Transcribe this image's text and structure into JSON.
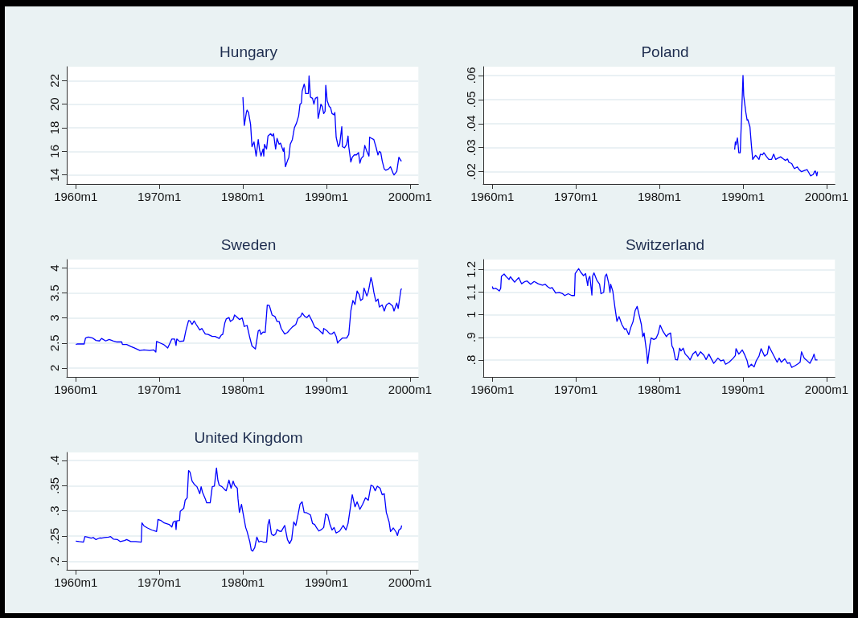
{
  "chart_data": [
    {
      "type": "line",
      "title": "Hungary",
      "color": "#0000ff",
      "grid": "y",
      "xlim": [
        "1958-12",
        "2001-01"
      ],
      "ylim": [
        13.23,
        23.18
      ],
      "xticks": [
        {
          "value": "1960-01",
          "label": "1960m1"
        },
        {
          "value": "1970-01",
          "label": "1970m1"
        },
        {
          "value": "1980-01",
          "label": "1980m1"
        },
        {
          "value": "1990-01",
          "label": "1990m1"
        },
        {
          "value": "2000-01",
          "label": "2000m1"
        }
      ],
      "yticks": [
        14,
        16,
        18,
        20,
        22
      ],
      "x": [
        "1980-01",
        "1980-03",
        "1980-06",
        "1980-07",
        "1980-09",
        "1980-12",
        "1981-02",
        "1981-05",
        "1981-08",
        "1981-11",
        "1982-01",
        "1982-03",
        "1982-06",
        "1982-07",
        "1982-08",
        "1982-11",
        "1983-01",
        "1983-05",
        "1983-07",
        "1983-09",
        "1983-12",
        "1984-02",
        "1984-05",
        "1984-07",
        "1984-11",
        "1984-12",
        "1985-02",
        "1985-05",
        "1985-07",
        "1985-09",
        "1985-12",
        "1986-03",
        "1986-06",
        "1986-09",
        "1986-11",
        "1987-01",
        "1987-02",
        "1987-05",
        "1987-06",
        "1987-07",
        "1987-11",
        "1987-12",
        "1988-02",
        "1988-05",
        "1988-07",
        "1988-09",
        "1988-12",
        "1989-01",
        "1989-03",
        "1989-05",
        "1989-07",
        "1989-09",
        "1989-11",
        "1989-12",
        "1990-02",
        "1990-05",
        "1990-07",
        "1990-09",
        "1990-12",
        "1991-01",
        "1991-03",
        "1991-06",
        "1991-08",
        "1991-11",
        "1991-12",
        "1992-03",
        "1992-06",
        "1992-08",
        "1992-09",
        "1992-12",
        "1993-02",
        "1993-05",
        "1993-08",
        "1993-11",
        "1994-01",
        "1994-03",
        "1994-06",
        "1994-08",
        "1994-11",
        "1995-02",
        "1995-03",
        "1995-06",
        "1995-09",
        "1995-12",
        "1996-03",
        "1996-05",
        "1996-07",
        "1996-09",
        "1996-12",
        "1997-02",
        "1997-06",
        "1997-09",
        "1998-01",
        "1998-02",
        "1998-06",
        "1998-09",
        "1998-12",
        "1999-01"
      ],
      "values": [
        20.6,
        18.2,
        19.3,
        19.5,
        19.3,
        18.3,
        16.4,
        16.8,
        15.6,
        17.0,
        16.1,
        15.6,
        16.2,
        15.6,
        16.6,
        16.2,
        17.3,
        17.5,
        17.3,
        17.5,
        16.2,
        17.1,
        16.6,
        16.7,
        16.0,
        16.3,
        14.7,
        15.2,
        15.5,
        16.6,
        17.0,
        18.0,
        18.4,
        19.0,
        20.0,
        20.1,
        21.1,
        21.7,
        21.5,
        20.9,
        20.9,
        22.4,
        20.6,
        20.5,
        20.0,
        20.5,
        20.6,
        18.8,
        19.3,
        20.0,
        19.8,
        19.2,
        19.4,
        21.6,
        20.3,
        19.8,
        19.7,
        19.2,
        19.1,
        19.3,
        17.2,
        16.4,
        16.6,
        18.1,
        16.4,
        16.3,
        16.6,
        17.3,
        16.4,
        15.1,
        15.5,
        15.7,
        15.7,
        15.9,
        15.0,
        15.4,
        15.6,
        16.5,
        16.0,
        15.6,
        17.2,
        17.1,
        17.0,
        16.4,
        15.7,
        16.0,
        15.9,
        15.2,
        14.5,
        14.4,
        14.5,
        14.7,
        14.1,
        14.0,
        14.3,
        15.5,
        15.2,
        15.2
      ]
    },
    {
      "type": "line",
      "title": "Poland",
      "color": "#0000ff",
      "grid": "y",
      "xlim": [
        "1958-12",
        "2001-01"
      ],
      "ylim": [
        0.0149,
        0.0636
      ],
      "xticks": [
        {
          "value": "1960-01",
          "label": "1960m1"
        },
        {
          "value": "1970-01",
          "label": "1970m1"
        },
        {
          "value": "1980-01",
          "label": "1980m1"
        },
        {
          "value": "1990-01",
          "label": "1990m1"
        },
        {
          "value": "2000-01",
          "label": "2000m1"
        }
      ],
      "yticks": [
        {
          "value": 0.02,
          "label": ".02"
        },
        {
          "value": 0.03,
          "label": ".03"
        },
        {
          "value": 0.04,
          "label": ".04"
        },
        {
          "value": 0.05,
          "label": ".05"
        },
        {
          "value": 0.06,
          "label": ".06"
        }
      ],
      "x": [
        "1989-01",
        "1989-02",
        "1989-03",
        "1989-05",
        "1989-06",
        "1989-07",
        "1989-09",
        "1989-11",
        "1990-01",
        "1990-02",
        "1990-05",
        "1990-07",
        "1990-08",
        "1990-11",
        "1991-01",
        "1991-03",
        "1991-07",
        "1991-09",
        "1991-12",
        "1992-02",
        "1992-05",
        "1992-07",
        "1992-11",
        "1993-02",
        "1993-06",
        "1993-09",
        "1993-12",
        "1994-03",
        "1994-07",
        "1994-11",
        "1995-02",
        "1995-05",
        "1995-07",
        "1995-11",
        "1996-01",
        "1996-03",
        "1996-07",
        "1996-09",
        "1997-01",
        "1997-06",
        "1997-09",
        "1997-12",
        "1998-02",
        "1998-06",
        "1998-08",
        "1998-09",
        "1998-11",
        "1998-12"
      ],
      "values": [
        0.0292,
        0.0324,
        0.0312,
        0.034,
        0.0312,
        0.0279,
        0.0279,
        0.0437,
        0.06,
        0.0516,
        0.0448,
        0.0414,
        0.0416,
        0.0386,
        0.0312,
        0.0251,
        0.0268,
        0.0262,
        0.0251,
        0.0273,
        0.027,
        0.0279,
        0.0262,
        0.0251,
        0.0251,
        0.0273,
        0.0251,
        0.0256,
        0.0262,
        0.0253,
        0.0247,
        0.0253,
        0.0239,
        0.0234,
        0.0222,
        0.0213,
        0.022,
        0.0211,
        0.02,
        0.0206,
        0.0209,
        0.0194,
        0.0183,
        0.0189,
        0.0202,
        0.0203,
        0.0183,
        0.02
      ]
    },
    {
      "type": "line",
      "title": "Sweden",
      "color": "#0000ff",
      "grid": "y",
      "xlim": [
        "1958-12",
        "2001-01"
      ],
      "ylim": [
        1.82,
        4.17
      ],
      "xticks": [
        {
          "value": "1960-01",
          "label": "1960m1"
        },
        {
          "value": "1970-01",
          "label": "1970m1"
        },
        {
          "value": "1980-01",
          "label": "1980m1"
        },
        {
          "value": "1990-01",
          "label": "1990m1"
        },
        {
          "value": "2000-01",
          "label": "2000m1"
        }
      ],
      "yticks": [
        2,
        2.5,
        3,
        3.5,
        4
      ],
      "x": [
        "1960-01",
        "1960-03",
        "1961-01",
        "1961-03",
        "1961-07",
        "1962-01",
        "1962-06",
        "1962-11",
        "1963-02",
        "1963-08",
        "1964-01",
        "1964-07",
        "1964-12",
        "1965-07",
        "1965-08",
        "1966-02",
        "1966-08",
        "1967-01",
        "1967-09",
        "1968-03",
        "1968-11",
        "1969-05",
        "1969-08",
        "1969-09",
        "1970-02",
        "1970-07",
        "1971-01",
        "1971-07",
        "1971-11",
        "1972-01",
        "1972-02",
        "1972-06",
        "1972-12",
        "1973-03",
        "1973-07",
        "1973-09",
        "1973-12",
        "1974-03",
        "1974-06",
        "1974-11",
        "1975-02",
        "1975-07",
        "1975-11",
        "1976-05",
        "1976-09",
        "1977-03",
        "1977-06",
        "1977-08",
        "1977-11",
        "1978-01",
        "1978-05",
        "1978-07",
        "1978-11",
        "1979-01",
        "1979-05",
        "1979-08",
        "1979-12",
        "1980-03",
        "1980-07",
        "1980-11",
        "1981-02",
        "1981-07",
        "1981-11",
        "1982-01",
        "1982-03",
        "1982-06",
        "1982-09",
        "1982-12",
        "1983-03",
        "1983-07",
        "1983-11",
        "1984-02",
        "1984-05",
        "1984-08",
        "1985-01",
        "1985-05",
        "1985-08",
        "1985-12",
        "1986-05",
        "1986-08",
        "1986-12",
        "1987-02",
        "1987-06",
        "1987-09",
        "1987-12",
        "1988-05",
        "1988-08",
        "1989-01",
        "1989-05",
        "1989-08",
        "1989-09",
        "1990-02",
        "1990-06",
        "1990-09",
        "1990-12",
        "1991-03",
        "1991-05",
        "1991-08",
        "1991-12",
        "1992-06",
        "1992-09",
        "1992-12",
        "1993-03",
        "1993-06",
        "1993-09",
        "1993-12",
        "1994-02",
        "1994-05",
        "1994-07",
        "1994-11",
        "1995-01",
        "1995-05",
        "1995-07",
        "1995-09",
        "1995-12",
        "1996-03",
        "1996-05",
        "1996-09",
        "1996-12",
        "1997-03",
        "1997-07",
        "1997-12",
        "1998-02",
        "1998-06",
        "1998-08",
        "1998-12",
        "1999-01"
      ],
      "values": [
        2.47,
        2.48,
        2.48,
        2.6,
        2.62,
        2.6,
        2.55,
        2.54,
        2.59,
        2.54,
        2.57,
        2.54,
        2.52,
        2.52,
        2.47,
        2.47,
        2.43,
        2.4,
        2.35,
        2.36,
        2.35,
        2.36,
        2.32,
        2.53,
        2.5,
        2.47,
        2.4,
        2.58,
        2.58,
        2.45,
        2.58,
        2.53,
        2.54,
        2.74,
        2.95,
        2.94,
        2.87,
        2.94,
        2.87,
        2.76,
        2.79,
        2.68,
        2.67,
        2.63,
        2.63,
        2.59,
        2.66,
        2.67,
        2.9,
        2.98,
        3.01,
        2.93,
        2.97,
        3.06,
        3.01,
        2.97,
        3.0,
        2.83,
        2.85,
        2.6,
        2.44,
        2.38,
        2.74,
        2.76,
        2.67,
        2.72,
        2.71,
        3.26,
        3.25,
        3.06,
        3.03,
        2.93,
        2.93,
        2.79,
        2.68,
        2.71,
        2.76,
        2.82,
        2.87,
        2.99,
        3.03,
        3.1,
        3.03,
        3.01,
        3.06,
        2.92,
        2.82,
        2.78,
        2.72,
        2.68,
        2.79,
        2.74,
        2.68,
        2.68,
        2.72,
        2.63,
        2.5,
        2.55,
        2.6,
        2.6,
        2.67,
        3.14,
        3.35,
        3.27,
        3.54,
        3.47,
        3.35,
        3.38,
        3.6,
        3.44,
        3.52,
        3.81,
        3.7,
        3.52,
        3.33,
        3.38,
        3.22,
        3.26,
        3.14,
        3.26,
        3.3,
        3.24,
        3.14,
        3.3,
        3.19,
        3.57,
        3.59
      ]
    },
    {
      "type": "line",
      "title": "Switzerland",
      "color": "#0000ff",
      "grid": "y",
      "xlim": [
        "1958-12",
        "2001-01"
      ],
      "ylim": [
        0.725,
        1.244
      ],
      "xticks": [
        {
          "value": "1960-01",
          "label": "1960m1"
        },
        {
          "value": "1970-01",
          "label": "1970m1"
        },
        {
          "value": "1980-01",
          "label": "1980m1"
        },
        {
          "value": "1990-01",
          "label": "1990m1"
        },
        {
          "value": "2000-01",
          "label": "2000m1"
        }
      ],
      "yticks": [
        {
          "value": 0.8,
          "label": ".8"
        },
        {
          "value": 0.9,
          "label": ".9"
        },
        1,
        1.1,
        1.2
      ],
      "x": [
        "1960-01",
        "1960-02",
        "1960-06",
        "1960-11",
        "1961-01",
        "1961-02",
        "1961-06",
        "1961-09",
        "1962-01",
        "1962-03",
        "1962-06",
        "1962-09",
        "1963-01",
        "1963-03",
        "1963-07",
        "1963-12",
        "1964-03",
        "1964-08",
        "1965-01",
        "1965-07",
        "1966-01",
        "1966-05",
        "1966-08",
        "1966-12",
        "1967-03",
        "1967-08",
        "1968-01",
        "1968-06",
        "1968-09",
        "1969-02",
        "1969-07",
        "1969-11",
        "1969-12",
        "1970-05",
        "1970-08",
        "1970-12",
        "1971-03",
        "1971-06",
        "1971-07",
        "1971-09",
        "1971-12",
        "1972-01",
        "1972-03",
        "1972-07",
        "1972-11",
        "1973-01",
        "1973-05",
        "1973-07",
        "1973-09",
        "1973-12",
        "1974-02",
        "1974-03",
        "1974-06",
        "1974-09",
        "1974-12",
        "1975-03",
        "1975-07",
        "1975-11",
        "1976-01",
        "1976-05",
        "1976-08",
        "1976-11",
        "1977-02",
        "1977-05",
        "1977-07",
        "1977-11",
        "1978-01",
        "1978-03",
        "1978-07",
        "1978-08",
        "1978-11",
        "1979-01",
        "1979-05",
        "1979-08",
        "1979-11",
        "1980-02",
        "1980-06",
        "1980-11",
        "1981-01",
        "1981-05",
        "1981-07",
        "1981-09",
        "1981-12",
        "1982-03",
        "1982-06",
        "1982-08",
        "1982-11",
        "1983-02",
        "1983-06",
        "1983-09",
        "1984-01",
        "1984-05",
        "1984-08",
        "1984-12",
        "1985-05",
        "1985-08",
        "1985-12",
        "1986-03",
        "1986-07",
        "1987-01",
        "1987-05",
        "1987-09",
        "1987-12",
        "1988-05",
        "1988-11",
        "1989-02",
        "1989-03",
        "1989-07",
        "1989-12",
        "1990-03",
        "1990-07",
        "1990-09",
        "1991-01",
        "1991-05",
        "1991-08",
        "1991-12",
        "1992-03",
        "1992-08",
        "1992-12",
        "1993-02",
        "1993-06",
        "1993-09",
        "1994-02",
        "1994-05",
        "1994-08",
        "1995-01",
        "1995-05",
        "1995-08",
        "1995-11",
        "1996-03",
        "1996-07",
        "1996-11",
        "1997-01",
        "1997-05",
        "1997-08",
        "1998-01",
        "1998-05",
        "1998-07",
        "1998-09",
        "1998-12"
      ],
      "values": [
        1.125,
        1.115,
        1.117,
        1.105,
        1.117,
        1.17,
        1.18,
        1.168,
        1.156,
        1.168,
        1.156,
        1.144,
        1.158,
        1.164,
        1.137,
        1.147,
        1.149,
        1.135,
        1.147,
        1.137,
        1.131,
        1.135,
        1.125,
        1.117,
        1.12,
        1.096,
        1.099,
        1.093,
        1.085,
        1.093,
        1.085,
        1.085,
        1.182,
        1.204,
        1.188,
        1.173,
        1.182,
        1.129,
        1.158,
        1.17,
        1.087,
        1.17,
        1.185,
        1.153,
        1.135,
        1.093,
        1.099,
        1.17,
        1.18,
        1.141,
        1.099,
        1.135,
        1.105,
        1.034,
        0.971,
        0.992,
        0.957,
        0.935,
        0.939,
        0.912,
        0.945,
        0.969,
        1.018,
        1.037,
        1.01,
        0.957,
        0.903,
        0.919,
        0.826,
        0.785,
        0.862,
        0.897,
        0.891,
        0.895,
        0.915,
        0.954,
        0.927,
        0.903,
        0.912,
        0.919,
        0.862,
        0.85,
        0.802,
        0.8,
        0.852,
        0.84,
        0.852,
        0.826,
        0.814,
        0.8,
        0.826,
        0.838,
        0.817,
        0.836,
        0.82,
        0.802,
        0.826,
        0.808,
        0.785,
        0.808,
        0.796,
        0.8,
        0.781,
        0.79,
        0.808,
        0.82,
        0.85,
        0.826,
        0.844,
        0.826,
        0.796,
        0.767,
        0.781,
        0.769,
        0.796,
        0.817,
        0.85,
        0.817,
        0.826,
        0.862,
        0.838,
        0.82,
        0.79,
        0.808,
        0.79,
        0.805,
        0.785,
        0.788,
        0.767,
        0.773,
        0.781,
        0.79,
        0.836,
        0.808,
        0.8,
        0.785,
        0.808,
        0.826,
        0.8,
        0.8
      ]
    },
    {
      "type": "line",
      "title": "United Kingdom",
      "color": "#0000ff",
      "grid": "y",
      "xlim": [
        "1958-12",
        "2001-01"
      ],
      "ylim": [
        0.183,
        0.416
      ],
      "xticks": [
        {
          "value": "1960-01",
          "label": "1960m1"
        },
        {
          "value": "1970-01",
          "label": "1970m1"
        },
        {
          "value": "1980-01",
          "label": "1980m1"
        },
        {
          "value": "1990-01",
          "label": "1990m1"
        },
        {
          "value": "2000-01",
          "label": "2000m1"
        }
      ],
      "yticks": [
        {
          "value": 0.2,
          "label": ".2"
        },
        {
          "value": 0.25,
          "label": ".25"
        },
        {
          "value": 0.3,
          "label": ".3"
        },
        {
          "value": 0.35,
          "label": ".35"
        },
        {
          "value": 0.4,
          "label": ".4"
        }
      ],
      "x": [
        "1960-01",
        "1960-06",
        "1960-12",
        "1961-02",
        "1961-06",
        "1961-11",
        "1962-02",
        "1962-06",
        "1962-11",
        "1963-02",
        "1963-06",
        "1963-12",
        "1964-03",
        "1964-07",
        "1965-01",
        "1965-05",
        "1965-11",
        "1966-02",
        "1966-08",
        "1967-03",
        "1967-11",
        "1967-12",
        "1968-03",
        "1968-08",
        "1969-02",
        "1969-09",
        "1969-11",
        "1970-03",
        "1970-08",
        "1971-03",
        "1971-07",
        "1971-09",
        "1971-12",
        "1972-01",
        "1972-02",
        "1972-06",
        "1972-07",
        "1972-12",
        "1973-02",
        "1973-05",
        "1973-07",
        "1973-09",
        "1973-12",
        "1974-03",
        "1974-07",
        "1974-11",
        "1975-01",
        "1975-03",
        "1975-07",
        "1975-09",
        "1976-02",
        "1976-05",
        "1976-08",
        "1976-11",
        "1977-01",
        "1977-03",
        "1977-07",
        "1977-11",
        "1978-01",
        "1978-05",
        "1978-08",
        "1978-11",
        "1979-01",
        "1979-05",
        "1979-06",
        "1979-08",
        "1979-11",
        "1980-01",
        "1980-05",
        "1980-07",
        "1980-11",
        "1981-01",
        "1981-03",
        "1981-06",
        "1981-09",
        "1981-12",
        "1982-03",
        "1982-06",
        "1982-11",
        "1983-01",
        "1983-03",
        "1983-06",
        "1983-09",
        "1983-12",
        "1984-02",
        "1984-05",
        "1984-08",
        "1985-01",
        "1985-05",
        "1985-08",
        "1985-11",
        "1986-02",
        "1986-05",
        "1986-08",
        "1986-11",
        "1987-02",
        "1987-05",
        "1987-09",
        "1988-02",
        "1988-05",
        "1988-08",
        "1988-11",
        "1989-02",
        "1989-06",
        "1989-09",
        "1989-12",
        "1990-03",
        "1990-06",
        "1990-09",
        "1990-12",
        "1991-03",
        "1991-08",
        "1992-01",
        "1992-05",
        "1992-08",
        "1992-12",
        "1993-02",
        "1993-06",
        "1993-09",
        "1994-01",
        "1994-05",
        "1994-09",
        "1995-01",
        "1995-05",
        "1995-08",
        "1995-11",
        "1996-02",
        "1996-06",
        "1996-09",
        "1996-12",
        "1997-03",
        "1997-07",
        "1997-09",
        "1998-01",
        "1998-05",
        "1998-07",
        "1998-09",
        "1998-12",
        "1999-01"
      ],
      "values": [
        0.24,
        0.239,
        0.238,
        0.249,
        0.248,
        0.246,
        0.247,
        0.243,
        0.246,
        0.246,
        0.247,
        0.248,
        0.249,
        0.244,
        0.243,
        0.239,
        0.241,
        0.243,
        0.239,
        0.239,
        0.238,
        0.276,
        0.27,
        0.266,
        0.262,
        0.259,
        0.283,
        0.281,
        0.276,
        0.273,
        0.268,
        0.278,
        0.28,
        0.263,
        0.28,
        0.281,
        0.299,
        0.305,
        0.321,
        0.326,
        0.38,
        0.377,
        0.359,
        0.353,
        0.348,
        0.334,
        0.348,
        0.337,
        0.324,
        0.316,
        0.316,
        0.348,
        0.349,
        0.385,
        0.361,
        0.351,
        0.348,
        0.342,
        0.34,
        0.361,
        0.345,
        0.359,
        0.351,
        0.345,
        0.324,
        0.297,
        0.313,
        0.297,
        0.267,
        0.259,
        0.238,
        0.222,
        0.22,
        0.227,
        0.248,
        0.238,
        0.24,
        0.238,
        0.238,
        0.273,
        0.283,
        0.254,
        0.251,
        0.254,
        0.263,
        0.26,
        0.259,
        0.271,
        0.243,
        0.235,
        0.243,
        0.278,
        0.271,
        0.291,
        0.313,
        0.318,
        0.297,
        0.296,
        0.292,
        0.275,
        0.273,
        0.266,
        0.26,
        0.263,
        0.267,
        0.294,
        0.291,
        0.273,
        0.262,
        0.267,
        0.256,
        0.26,
        0.271,
        0.262,
        0.275,
        0.313,
        0.332,
        0.308,
        0.318,
        0.303,
        0.313,
        0.326,
        0.321,
        0.351,
        0.349,
        0.34,
        0.349,
        0.345,
        0.332,
        0.334,
        0.297,
        0.278,
        0.259,
        0.266,
        0.258,
        0.251,
        0.262,
        0.265,
        0.271
      ]
    }
  ]
}
